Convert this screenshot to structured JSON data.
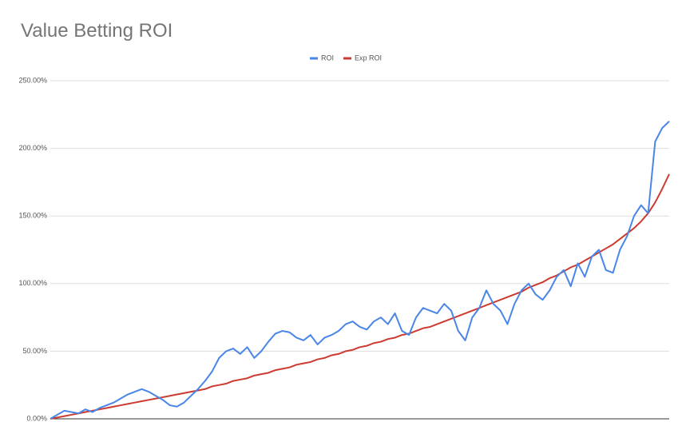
{
  "chart_data": {
    "type": "line",
    "title": "Value Betting ROI",
    "ylim": [
      0,
      250
    ],
    "yticks": [
      {
        "value": 0,
        "label": "0.00%"
      },
      {
        "value": 50,
        "label": "50.00%"
      },
      {
        "value": 100,
        "label": "100.00%"
      },
      {
        "value": 150,
        "label": "150.00%"
      },
      {
        "value": 200,
        "label": "200.00%"
      },
      {
        "value": 250,
        "label": "250.00%"
      }
    ],
    "grid": true,
    "legend": "top",
    "series": [
      {
        "name": "ROI",
        "color": "#4a86e8",
        "values": [
          0,
          3,
          6,
          5,
          4,
          7,
          5,
          8,
          10,
          12,
          15,
          18,
          20,
          22,
          20,
          17,
          14,
          10,
          9,
          12,
          17,
          22,
          28,
          35,
          45,
          50,
          52,
          48,
          53,
          45,
          50,
          57,
          63,
          65,
          64,
          60,
          58,
          62,
          55,
          60,
          62,
          65,
          70,
          72,
          68,
          66,
          72,
          75,
          70,
          78,
          65,
          62,
          75,
          82,
          80,
          78,
          85,
          80,
          65,
          58,
          75,
          82,
          95,
          85,
          80,
          70,
          85,
          95,
          100,
          92,
          88,
          95,
          105,
          110,
          98,
          115,
          105,
          120,
          125,
          110,
          108,
          125,
          135,
          150,
          158,
          152,
          205,
          215,
          220
        ]
      },
      {
        "name": "Exp ROI",
        "color": "#cc3b2f",
        "values": [
          0,
          1,
          2,
          3,
          4,
          5,
          6,
          7,
          8,
          9,
          10,
          11,
          12,
          13,
          14,
          15,
          16,
          17,
          18,
          19,
          20,
          21,
          22,
          24,
          25,
          26,
          28,
          29,
          30,
          32,
          33,
          34,
          36,
          37,
          38,
          40,
          41,
          42,
          44,
          45,
          47,
          48,
          50,
          51,
          53,
          54,
          56,
          57,
          59,
          60,
          62,
          63,
          65,
          67,
          68,
          70,
          72,
          74,
          76,
          78,
          80,
          82,
          84,
          86,
          88,
          90,
          92,
          94,
          97,
          99,
          101,
          104,
          106,
          109,
          112,
          114,
          117,
          120,
          123,
          126,
          129,
          133,
          137,
          141,
          146,
          152,
          160,
          170,
          181
        ]
      }
    ]
  }
}
